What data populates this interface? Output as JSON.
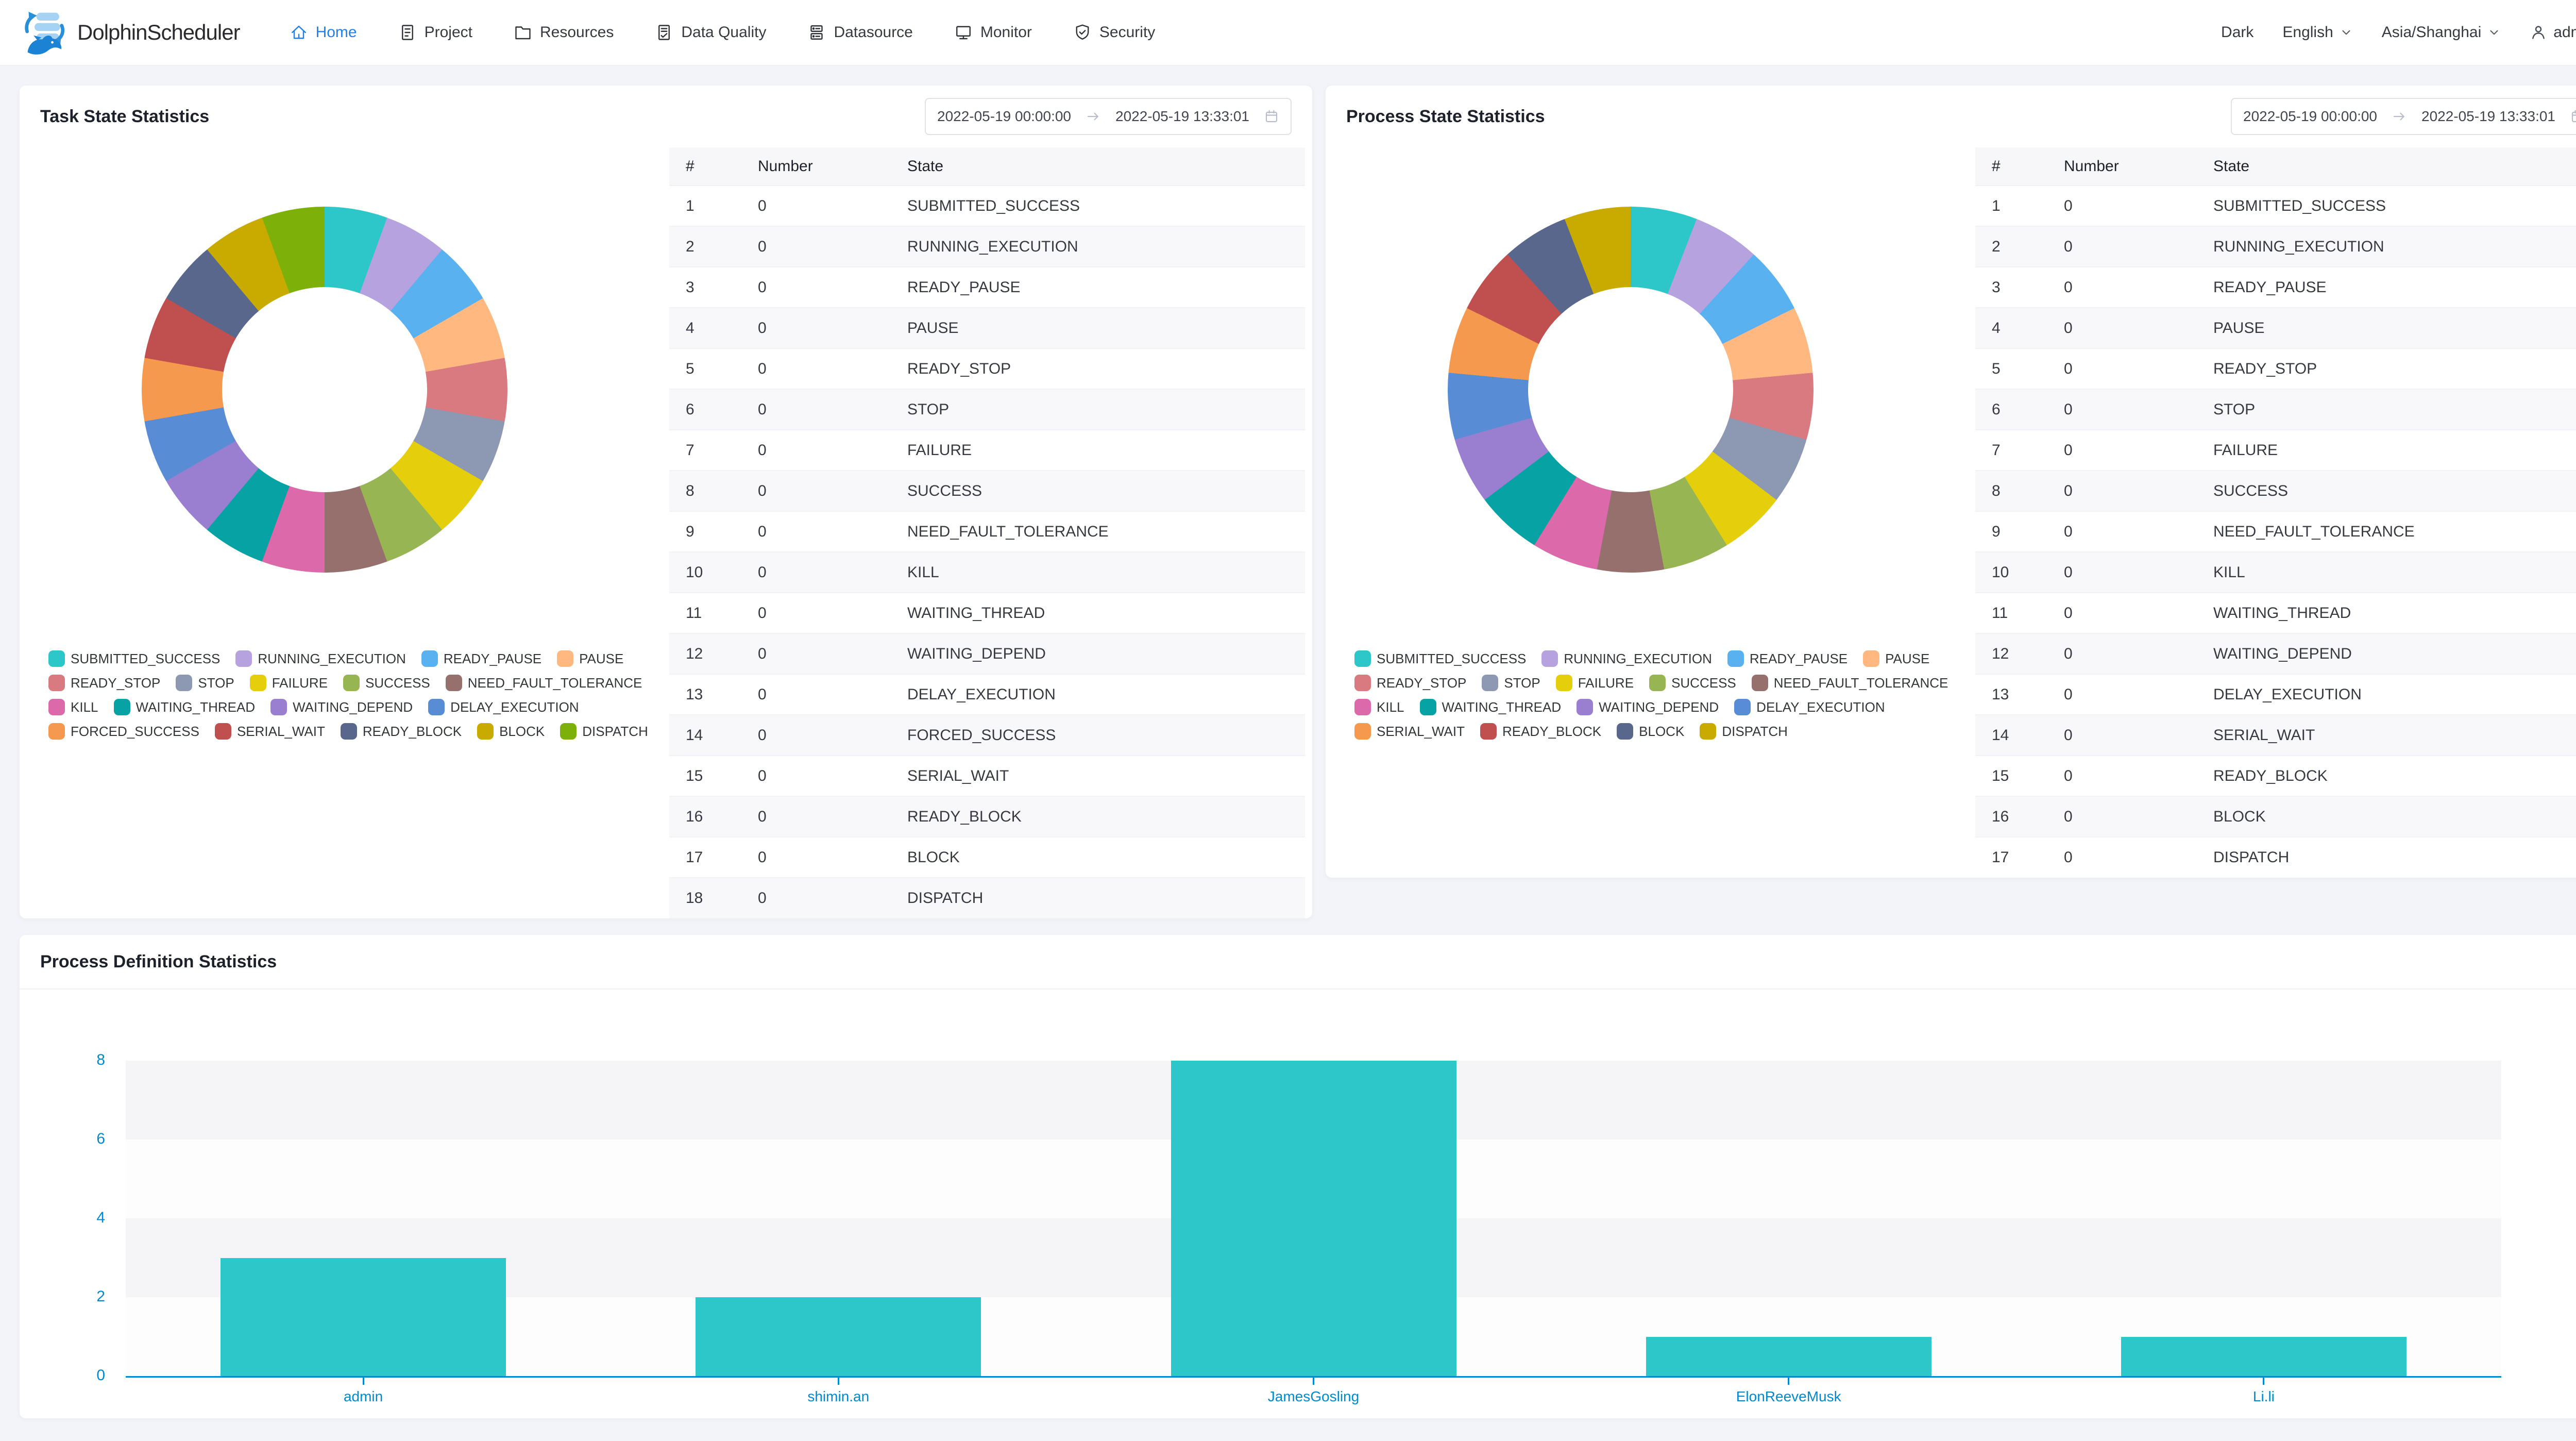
{
  "header": {
    "brand": "DolphinScheduler",
    "menu": [
      {
        "id": "home",
        "label": "Home",
        "icon": "home-icon",
        "active": true
      },
      {
        "id": "project",
        "label": "Project",
        "icon": "project-icon",
        "active": false
      },
      {
        "id": "resources",
        "label": "Resources",
        "icon": "folder-icon",
        "active": false
      },
      {
        "id": "data-quality",
        "label": "Data Quality",
        "icon": "data-quality-icon",
        "active": false
      },
      {
        "id": "datasource",
        "label": "Datasource",
        "icon": "datasource-icon",
        "active": false
      },
      {
        "id": "monitor",
        "label": "Monitor",
        "icon": "monitor-icon",
        "active": false
      },
      {
        "id": "security",
        "label": "Security",
        "icon": "security-icon",
        "active": false
      }
    ],
    "controls": {
      "theme": "Dark",
      "language": "English",
      "timezone": "Asia/Shanghai",
      "username": "admin"
    }
  },
  "state_cards": [
    {
      "title": "Task State Statistics",
      "date_start": "2022-05-19 00:00:00",
      "date_end": "2022-05-19 13:33:01",
      "table_headers": [
        "#",
        "Number",
        "State"
      ]
    },
    {
      "title": "Process State Statistics",
      "date_start": "2022-05-19 00:00:00",
      "date_end": "2022-05-19 13:33:01",
      "table_headers": [
        "#",
        "Number",
        "State"
      ]
    }
  ],
  "definition_card": {
    "title": "Process Definition Statistics"
  },
  "chart_data": [
    {
      "id": "task-state-pie",
      "type": "pie",
      "title": "Task State Statistics",
      "donut": true,
      "labels": [
        "SUBMITTED_SUCCESS",
        "RUNNING_EXECUTION",
        "READY_PAUSE",
        "PAUSE",
        "READY_STOP",
        "STOP",
        "FAILURE",
        "SUCCESS",
        "NEED_FAULT_TOLERANCE",
        "KILL",
        "WAITING_THREAD",
        "WAITING_DEPEND",
        "DELAY_EXECUTION",
        "FORCED_SUCCESS",
        "SERIAL_WAIT",
        "READY_BLOCK",
        "BLOCK",
        "DISPATCH"
      ],
      "values": [
        0,
        0,
        0,
        0,
        0,
        0,
        0,
        0,
        0,
        0,
        0,
        0,
        0,
        0,
        0,
        0,
        0,
        0
      ],
      "colors": [
        "#2ec7c9",
        "#b6a2de",
        "#5ab1ef",
        "#ffb980",
        "#d87a80",
        "#8d98b3",
        "#e5cf0d",
        "#97b552",
        "#95706d",
        "#dc69aa",
        "#07a2a4",
        "#9a7fd1",
        "#588dd5",
        "#f5994e",
        "#c05050",
        "#59678c",
        "#c9ab00",
        "#7eb00a"
      ],
      "legend_rows": [
        [
          0,
          1,
          2,
          3
        ],
        [
          4,
          5,
          6,
          7,
          8
        ],
        [
          9,
          10,
          11,
          12
        ],
        [
          13,
          14,
          15,
          16,
          17
        ]
      ],
      "legend_position": "bottom-left"
    },
    {
      "id": "process-state-pie",
      "type": "pie",
      "title": "Process State Statistics",
      "donut": true,
      "labels": [
        "SUBMITTED_SUCCESS",
        "RUNNING_EXECUTION",
        "READY_PAUSE",
        "PAUSE",
        "READY_STOP",
        "STOP",
        "FAILURE",
        "SUCCESS",
        "NEED_FAULT_TOLERANCE",
        "KILL",
        "WAITING_THREAD",
        "WAITING_DEPEND",
        "DELAY_EXECUTION",
        "SERIAL_WAIT",
        "READY_BLOCK",
        "BLOCK",
        "DISPATCH"
      ],
      "values": [
        0,
        0,
        0,
        0,
        0,
        0,
        0,
        0,
        0,
        0,
        0,
        0,
        0,
        0,
        0,
        0,
        0
      ],
      "colors": [
        "#2ec7c9",
        "#b6a2de",
        "#5ab1ef",
        "#ffb980",
        "#d87a80",
        "#8d98b3",
        "#e5cf0d",
        "#97b552",
        "#95706d",
        "#dc69aa",
        "#07a2a4",
        "#9a7fd1",
        "#588dd5",
        "#f5994e",
        "#c05050",
        "#59678c",
        "#c9ab00"
      ],
      "legend_rows": [
        [
          0,
          1,
          2,
          3
        ],
        [
          4,
          5,
          6,
          7,
          8
        ],
        [
          9,
          10,
          11,
          12
        ],
        [
          13,
          14,
          15,
          16
        ]
      ],
      "legend_position": "bottom-left"
    },
    {
      "id": "process-definition-bar",
      "type": "bar",
      "title": "Process Definition Statistics",
      "categories": [
        "admin",
        "shimin.an",
        "JamesGosling",
        "ElonReeveMusk",
        "Li.li"
      ],
      "values": [
        3,
        2,
        8,
        1,
        1
      ],
      "bar_color": "#2ec7c9",
      "axis_color": "#008acd",
      "ylim": [
        0,
        8
      ],
      "yticks": [
        0,
        2,
        4,
        6,
        8
      ],
      "grid": "split-area",
      "split_area_colors": [
        "#f5f5f7",
        "#fdfdfe"
      ],
      "legend_position": "none"
    }
  ]
}
